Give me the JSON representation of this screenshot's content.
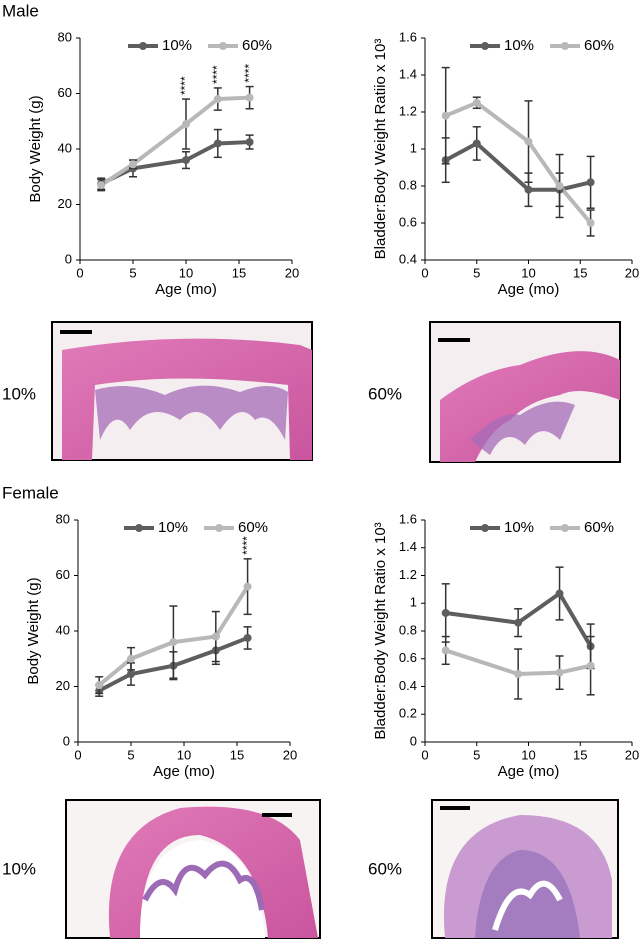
{
  "sections": [
    {
      "title": "Male",
      "image_labels": [
        "10%",
        "60%"
      ]
    },
    {
      "title": "Female",
      "image_labels": [
        "10%",
        "60%"
      ]
    }
  ],
  "chart_data": [
    {
      "type": "line",
      "x_label": "Age (mo)",
      "y_label": "Body Weight (g)",
      "x": [
        2,
        5,
        10,
        13,
        16
      ],
      "xlim": [
        0,
        20
      ],
      "xticks": [
        0,
        5,
        10,
        15,
        20
      ],
      "ylim": [
        0,
        80
      ],
      "yticks": [
        0,
        20,
        40,
        60,
        80
      ],
      "series": [
        {
          "name": "10%",
          "color": "#5e5e5e",
          "values": [
            27.5,
            33,
            36,
            42,
            42.5
          ],
          "errors": [
            2,
            3,
            3,
            5,
            2.5
          ]
        },
        {
          "name": "60%",
          "color": "#b8b8b8",
          "values": [
            27,
            34.5,
            49,
            58,
            58.5
          ],
          "errors": [
            2,
            1.5,
            9,
            4,
            4
          ]
        }
      ],
      "annotations": [
        {
          "x": 10,
          "text": "****"
        },
        {
          "x": 13,
          "text": "****"
        },
        {
          "x": 16,
          "text": "****"
        }
      ]
    },
    {
      "type": "line",
      "x_label": "Age (mo)",
      "y_label": "Bladder:Body Weight Ratiio x 10³",
      "x": [
        2,
        5,
        10,
        13,
        16
      ],
      "xlim": [
        0,
        20
      ],
      "xticks": [
        0,
        5,
        10,
        15,
        20
      ],
      "ylim": [
        0.4,
        1.6
      ],
      "yticks": [
        0.4,
        0.6,
        0.8,
        1,
        1.2,
        1.4,
        1.6
      ],
      "series": [
        {
          "name": "10%",
          "color": "#5e5e5e",
          "values": [
            0.94,
            1.03,
            0.78,
            0.78,
            0.82
          ],
          "errors": [
            0.12,
            0.09,
            0.09,
            0.09,
            0.14
          ]
        },
        {
          "name": "60%",
          "color": "#b8b8b8",
          "values": [
            1.18,
            1.25,
            1.04,
            0.8,
            0.6
          ],
          "errors": [
            0.26,
            0.03,
            0.22,
            0.17,
            0.07
          ]
        }
      ]
    },
    {
      "type": "line",
      "x_label": "Age (mo)",
      "y_label": "Body Weight (g)",
      "x": [
        2,
        5,
        9,
        13,
        16
      ],
      "xlim": [
        0,
        20
      ],
      "xticks": [
        0,
        5,
        10,
        15,
        20
      ],
      "ylim": [
        0,
        80
      ],
      "yticks": [
        0,
        20,
        40,
        60,
        80
      ],
      "series": [
        {
          "name": "10%",
          "color": "#5e5e5e",
          "values": [
            18.5,
            24.5,
            27.5,
            33,
            37.5
          ],
          "errors": [
            2,
            4,
            5,
            5,
            4
          ]
        },
        {
          "name": "60%",
          "color": "#b8b8b8",
          "values": [
            20.5,
            30,
            36,
            38,
            56
          ],
          "errors": [
            3,
            4,
            13,
            9,
            10
          ]
        }
      ],
      "annotations": [
        {
          "x": 16,
          "text": "****"
        }
      ]
    },
    {
      "type": "line",
      "x_label": "Age (mo)",
      "y_label": "Bladder:Body Weight Ratio x 10³",
      "x": [
        2,
        9,
        13,
        16
      ],
      "xlim": [
        0,
        20
      ],
      "xticks": [
        0,
        5,
        10,
        15,
        20
      ],
      "ylim": [
        0,
        1.6
      ],
      "yticks": [
        0,
        0.2,
        0.4,
        0.6,
        0.8,
        1,
        1.2,
        1.4,
        1.6
      ],
      "series": [
        {
          "name": "10%",
          "color": "#5e5e5e",
          "values": [
            0.93,
            0.86,
            1.07,
            0.69
          ],
          "errors": [
            0.21,
            0.1,
            0.19,
            0.16
          ]
        },
        {
          "name": "60%",
          "color": "#b8b8b8",
          "values": [
            0.66,
            0.49,
            0.5,
            0.55
          ],
          "errors": [
            0.1,
            0.18,
            0.12,
            0.21
          ]
        }
      ]
    }
  ]
}
